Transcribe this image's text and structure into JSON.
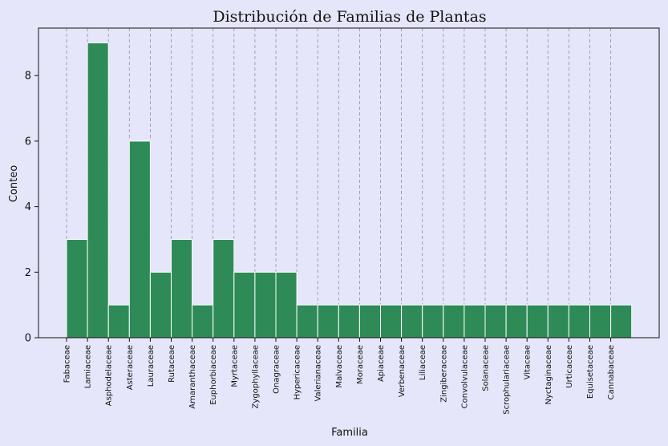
{
  "chart_data": {
    "type": "bar",
    "title": "Distribución de Familias de Plantas",
    "xlabel": "Familia",
    "ylabel": "Conteo",
    "categories": [
      "Fabaceae",
      "Lamiaceae",
      "Asphodelaceae",
      "Asteraceae",
      "Lauraceae",
      "Rutaceae",
      "Amaranthaceae",
      "Euphorbiaceae",
      "Myrtaceae",
      "Zygophyllaceae",
      "Onagraceae",
      "Hypericaceae",
      "Valerianaceae",
      "Malvaceae",
      "Moraceae",
      "Apiaceae",
      "Verbenaceae",
      "Liliaceae",
      "Zingiberaceae",
      "Convolvulaceae",
      "Solanaceae",
      "Scrophulariaceae",
      "Vitaceae",
      "Nyctaginaceae",
      "Urticaceae",
      "Equisetaceae",
      "Cannabaceae"
    ],
    "values": [
      3,
      9,
      1,
      6,
      2,
      3,
      1,
      3,
      2,
      2,
      2,
      1,
      1,
      1,
      1,
      1,
      1,
      1,
      1,
      1,
      1,
      1,
      1,
      1,
      1,
      1,
      1
    ],
    "ylim": [
      0,
      9.45
    ],
    "yticks": [
      0,
      2,
      4,
      6,
      8
    ],
    "grid": "x-dashed",
    "colors": {
      "bar": "#2e8b57",
      "bar_edge": "#ffffff",
      "background": "#e6e6fa",
      "grid": "#8e8ea8"
    }
  }
}
